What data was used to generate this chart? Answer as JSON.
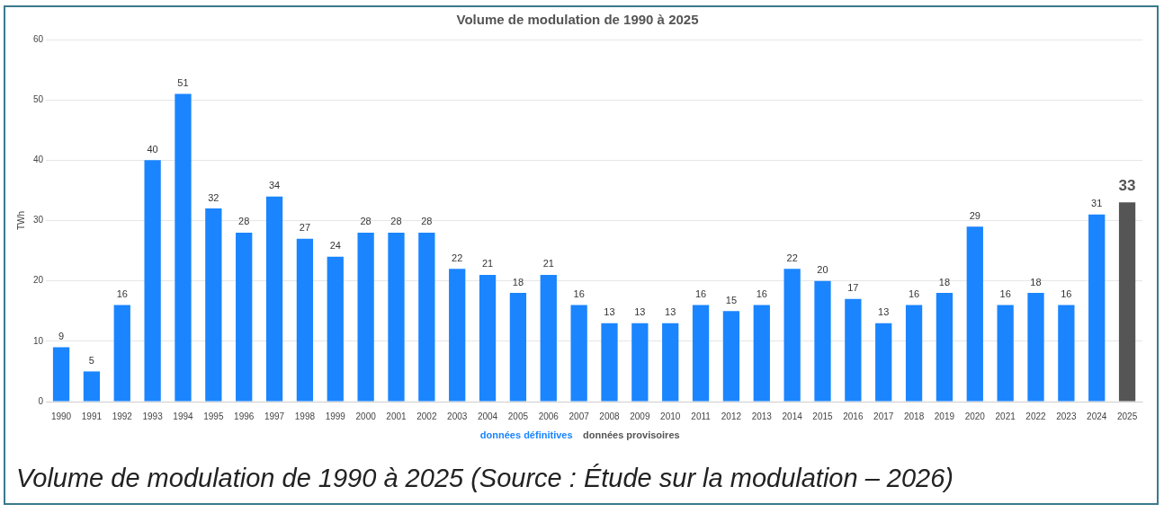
{
  "chart_data": {
    "type": "bar",
    "title": "Volume de modulation de 1990 à 2025",
    "ylabel": "TWh",
    "categories": [
      "1990",
      "1991",
      "1992",
      "1993",
      "1994",
      "1995",
      "1996",
      "1997",
      "1998",
      "1999",
      "2000",
      "2001",
      "2002",
      "2003",
      "2004",
      "2005",
      "2006",
      "2007",
      "2008",
      "2009",
      "2010",
      "2011",
      "2012",
      "2013",
      "2014",
      "2015",
      "2016",
      "2017",
      "2018",
      "2019",
      "2020",
      "2021",
      "2022",
      "2023",
      "2024",
      "2025"
    ],
    "series": [
      {
        "name": "données définitives",
        "color": "#1a85ff",
        "values": [
          9,
          5,
          16,
          40,
          51,
          32,
          28,
          34,
          27,
          24,
          28,
          28,
          28,
          22,
          21,
          18,
          21,
          16,
          13,
          13,
          13,
          16,
          15,
          16,
          22,
          20,
          17,
          13,
          16,
          18,
          29,
          16,
          18,
          16,
          31,
          null
        ]
      },
      {
        "name": "données provisoires",
        "color": "#555555",
        "values": [
          null,
          null,
          null,
          null,
          null,
          null,
          null,
          null,
          null,
          null,
          null,
          null,
          null,
          null,
          null,
          null,
          null,
          null,
          null,
          null,
          null,
          null,
          null,
          null,
          null,
          null,
          null,
          null,
          null,
          null,
          null,
          null,
          null,
          null,
          null,
          33
        ]
      }
    ],
    "ylim": [
      0,
      60
    ],
    "yticks": [
      0,
      10,
      20,
      30,
      40,
      50,
      60
    ],
    "grid": "y",
    "legend": "bottom",
    "data_labels": true,
    "annotations": [
      "Volume de modulation de 1990 à 2025 (Source : Étude sur la modulation – 2026)"
    ]
  }
}
